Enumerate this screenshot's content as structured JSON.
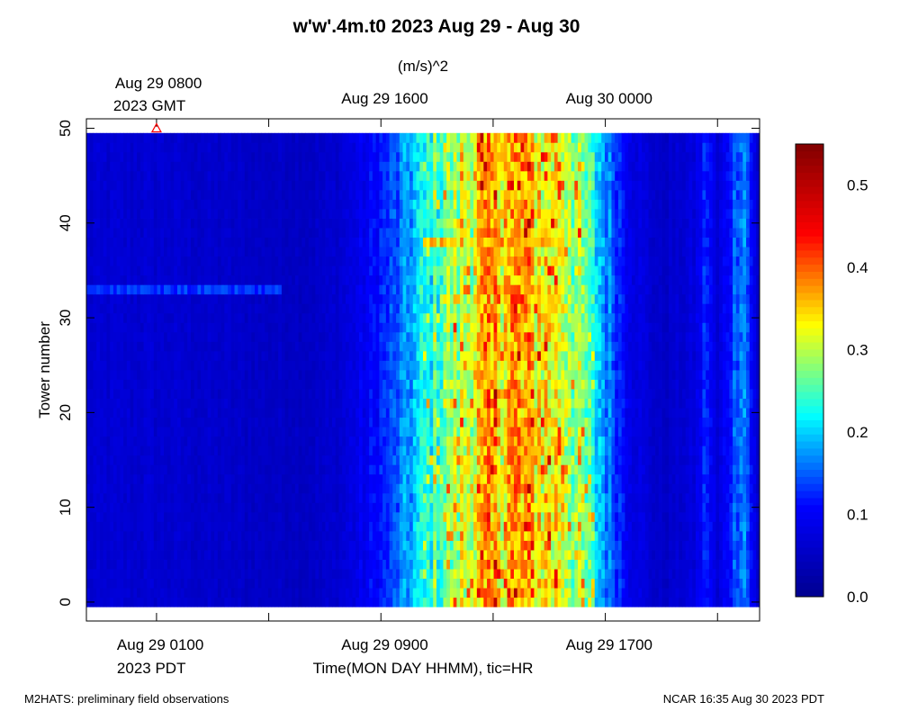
{
  "title": "w'w'.4m.t0 2023 Aug 29 - Aug 30",
  "chart_data": {
    "type": "heatmap",
    "title": "w'w'.4m.t0 2023 Aug 29 - Aug 30",
    "colorbar_label": "(m/s)^2",
    "ylabel": "Tower number",
    "xlabel": "Time(MON DAY HHMM), tic=HR",
    "x_unit": "hours since Aug 29 0100 PDT",
    "xlim": [
      -2.5,
      21.5
    ],
    "ylim": [
      -2,
      51
    ],
    "tower_range": [
      0,
      49
    ],
    "colorbar_range": [
      0.0,
      0.55
    ],
    "bottom_ticks": [
      {
        "x": 0,
        "label": "Aug 29 0100",
        "sub": "2023 PDT"
      },
      {
        "x": 8,
        "label": "Aug 29 0900",
        "sub": ""
      },
      {
        "x": 16,
        "label": "Aug 29 1700",
        "sub": ""
      }
    ],
    "minor_x_ticks": [
      0,
      4,
      8,
      12,
      16,
      20
    ],
    "top_ticks": [
      {
        "x": 0,
        "label": "Aug 29 0800",
        "sub": "2023 GMT"
      },
      {
        "x": 8,
        "label": "Aug 29 1600",
        "sub": ""
      },
      {
        "x": 16,
        "label": "Aug 30 0000",
        "sub": ""
      }
    ],
    "y_ticks": [
      "0",
      "10",
      "20",
      "30",
      "40",
      "50"
    ],
    "y_tick_values": [
      0,
      10,
      20,
      30,
      40,
      50
    ],
    "colorbar_ticks": [
      "0.0",
      "0.1",
      "0.2",
      "0.3",
      "0.4",
      "0.5"
    ],
    "colorbar_tick_values": [
      0.0,
      0.1,
      0.2,
      0.3,
      0.4,
      0.5
    ],
    "colormap": [
      "#00008f",
      "#0000ff",
      "#00ffff",
      "#ffff00",
      "#ff0000",
      "#800000"
    ],
    "marker": {
      "x": 0,
      "y": 50,
      "symbol": "triangle",
      "color": "#ff0000"
    },
    "time_profile": [
      {
        "x": -2.5,
        "v": 0.06
      },
      {
        "x": 0,
        "v": 0.06
      },
      {
        "x": 2,
        "v": 0.055
      },
      {
        "x": 4,
        "v": 0.05
      },
      {
        "x": 5.5,
        "v": 0.05
      },
      {
        "x": 6.5,
        "v": 0.06
      },
      {
        "x": 7.5,
        "v": 0.09
      },
      {
        "x": 8.5,
        "v": 0.13
      },
      {
        "x": 9.5,
        "v": 0.2
      },
      {
        "x": 10.5,
        "v": 0.26
      },
      {
        "x": 11.5,
        "v": 0.31
      },
      {
        "x": 12.5,
        "v": 0.34
      },
      {
        "x": 13.5,
        "v": 0.32
      },
      {
        "x": 14.5,
        "v": 0.3
      },
      {
        "x": 15.3,
        "v": 0.24
      },
      {
        "x": 16,
        "v": 0.16
      },
      {
        "x": 17,
        "v": 0.08
      },
      {
        "x": 18,
        "v": 0.05
      },
      {
        "x": 19.2,
        "v": 0.07
      },
      {
        "x": 19.6,
        "v": 0.12
      },
      {
        "x": 20,
        "v": 0.06
      },
      {
        "x": 20.9,
        "v": 0.17
      },
      {
        "x": 21.5,
        "v": 0.04
      }
    ],
    "enhanced_rows": [
      {
        "tower": 33,
        "x_range": [
          -2.5,
          4.5
        ],
        "v": 0.13
      },
      {
        "tower": 38,
        "x_range": [
          9.5,
          14.5
        ],
        "v": 0.34
      }
    ]
  },
  "footer": {
    "left": "M2HATS: preliminary field observations",
    "right": "NCAR 16:35 Aug 30 2023 PDT"
  }
}
